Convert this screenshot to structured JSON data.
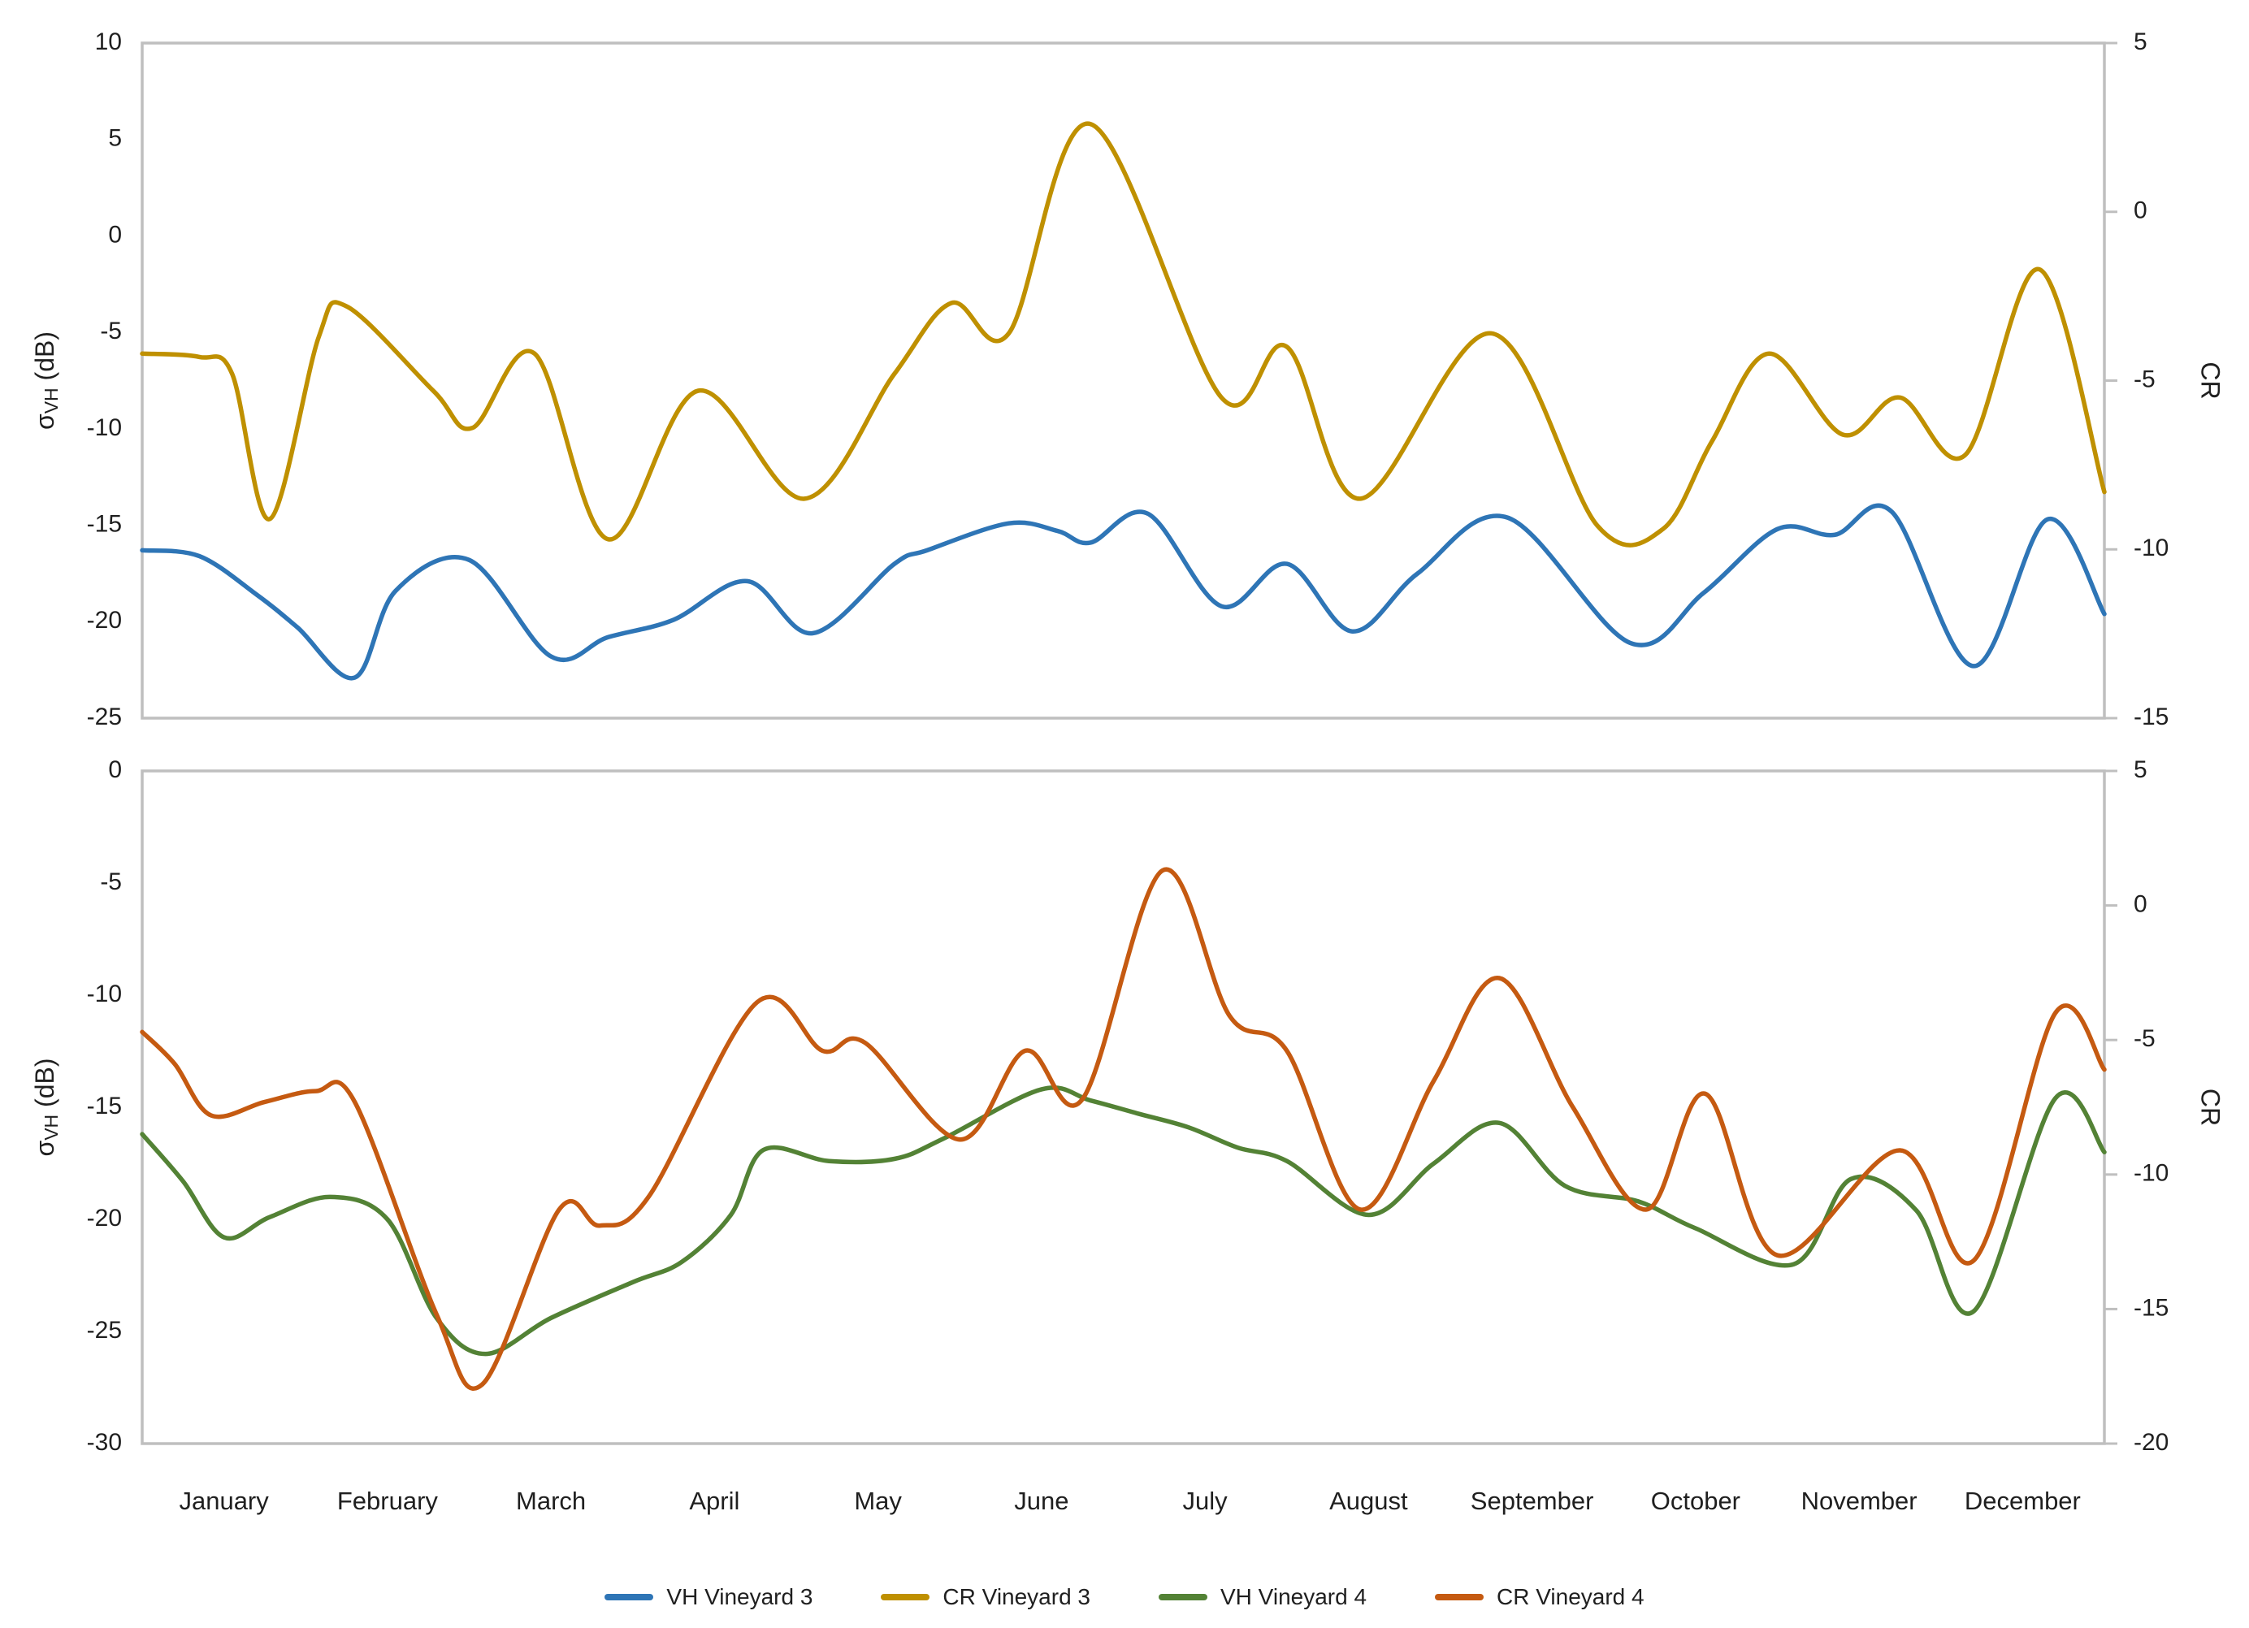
{
  "figure": {
    "kind": "dual stacked line charts, radar backscatter time series",
    "background": "#ffffff",
    "axis_border_color": "#BFBFBF",
    "text_color": "#1f1f1f"
  },
  "chart_data": [
    {
      "id": "vineyard3-top-chart",
      "type": "line",
      "x_axis": {
        "categories": [
          "January",
          "February",
          "March",
          "April",
          "May",
          "June",
          "July",
          "August",
          "September",
          "October",
          "November",
          "December"
        ],
        "range": [
          0,
          12
        ],
        "labels_shown": false
      },
      "left_axis": {
        "title_sigma": "σ",
        "title_sub": "VH",
        "title_unit": " (dB)",
        "ticks": [
          10,
          5,
          0,
          -5,
          -10,
          -15,
          -20,
          -25
        ],
        "range": [
          10,
          -25
        ]
      },
      "right_axis": {
        "title": "CR",
        "ticks": [
          5,
          0,
          -5,
          -10,
          -15
        ],
        "range": [
          5,
          -15
        ]
      },
      "grid": false,
      "legend_position": "bottom",
      "series": [
        {
          "name": "VH Vineyard 3",
          "color": "#2E75B6",
          "axis": "left",
          "points": [
            [
              0,
              -16.3
            ],
            [
              0.35,
              -16.6
            ],
            [
              0.7,
              -18.6
            ],
            [
              0.95,
              -20.3
            ],
            [
              1.3,
              -22.9
            ],
            [
              1.55,
              -18.4
            ],
            [
              2.0,
              -16.8
            ],
            [
              2.5,
              -21.8
            ],
            [
              2.85,
              -20.8
            ],
            [
              3.25,
              -19.9
            ],
            [
              3.7,
              -17.9
            ],
            [
              4.1,
              -20.6
            ],
            [
              4.6,
              -17.0
            ],
            [
              4.8,
              -16.3
            ],
            [
              5.3,
              -14.9
            ],
            [
              5.6,
              -15.3
            ],
            [
              5.8,
              -15.9
            ],
            [
              6.15,
              -14.4
            ],
            [
              6.6,
              -19.2
            ],
            [
              7.0,
              -17.0
            ],
            [
              7.4,
              -20.5
            ],
            [
              7.8,
              -17.5
            ],
            [
              8.35,
              -14.6
            ],
            [
              9.1,
              -21.1
            ],
            [
              9.55,
              -18.5
            ],
            [
              10.0,
              -15.2
            ],
            [
              10.35,
              -15.5
            ],
            [
              10.7,
              -14.3
            ],
            [
              11.2,
              -22.3
            ],
            [
              11.65,
              -14.7
            ],
            [
              12,
              -19.6
            ]
          ]
        },
        {
          "name": "CR Vineyard 3",
          "color": "#BF9000",
          "axis": "right",
          "points": [
            [
              0,
              -4.2
            ],
            [
              0.35,
              -4.3
            ],
            [
              0.55,
              -4.8
            ],
            [
              0.78,
              -9.1
            ],
            [
              1.08,
              -3.7
            ],
            [
              1.25,
              -2.8
            ],
            [
              1.78,
              -5.3
            ],
            [
              2.02,
              -6.4
            ],
            [
              2.4,
              -4.2
            ],
            [
              2.85,
              -9.7
            ],
            [
              3.4,
              -5.3
            ],
            [
              4.05,
              -8.5
            ],
            [
              4.6,
              -4.8
            ],
            [
              4.95,
              -2.7
            ],
            [
              5.3,
              -3.6
            ],
            [
              5.8,
              2.6
            ],
            [
              6.6,
              -5.5
            ],
            [
              7.0,
              -4.0
            ],
            [
              7.45,
              -8.5
            ],
            [
              8.25,
              -3.6
            ],
            [
              8.9,
              -9.3
            ],
            [
              9.3,
              -9.4
            ],
            [
              9.6,
              -6.8
            ],
            [
              9.95,
              -4.2
            ],
            [
              10.4,
              -6.6
            ],
            [
              10.75,
              -5.5
            ],
            [
              11.15,
              -7.2
            ],
            [
              11.6,
              -1.7
            ],
            [
              12,
              -8.3
            ]
          ]
        }
      ]
    },
    {
      "id": "vineyard4-bottom-chart",
      "type": "line",
      "x_axis": {
        "categories": [
          "January",
          "February",
          "March",
          "April",
          "May",
          "June",
          "July",
          "August",
          "September",
          "October",
          "November",
          "December"
        ],
        "range": [
          0,
          12
        ],
        "labels_shown": true
      },
      "left_axis": {
        "title_sigma": "σ",
        "title_sub": "VH",
        "title_unit": " (dB)",
        "ticks": [
          0,
          -5,
          -10,
          -15,
          -20,
          -25,
          -30
        ],
        "range": [
          0,
          -30
        ]
      },
      "right_axis": {
        "title": "CR",
        "ticks": [
          5,
          0,
          -5,
          -10,
          -15,
          -20
        ],
        "range": [
          5,
          -20
        ]
      },
      "grid": false,
      "legend_position": "bottom",
      "series": [
        {
          "name": "VH Vineyard 4",
          "color": "#538235",
          "axis": "left",
          "points": [
            [
              0,
              -16.2
            ],
            [
              0.25,
              -18.3
            ],
            [
              0.5,
              -20.8
            ],
            [
              0.78,
              -19.9
            ],
            [
              1.15,
              -19.0
            ],
            [
              1.5,
              -20.0
            ],
            [
              1.8,
              -24.4
            ],
            [
              2.1,
              -26.0
            ],
            [
              2.5,
              -24.4
            ],
            [
              3.0,
              -22.8
            ],
            [
              3.3,
              -21.9
            ],
            [
              3.6,
              -19.8
            ],
            [
              3.8,
              -16.9
            ],
            [
              4.2,
              -17.4
            ],
            [
              4.6,
              -17.3
            ],
            [
              4.9,
              -16.4
            ],
            [
              5.5,
              -14.2
            ],
            [
              5.8,
              -14.7
            ],
            [
              6.1,
              -15.3
            ],
            [
              6.4,
              -15.9
            ],
            [
              6.7,
              -16.8
            ],
            [
              7.0,
              -17.4
            ],
            [
              7.5,
              -19.8
            ],
            [
              7.9,
              -17.5
            ],
            [
              8.3,
              -15.7
            ],
            [
              8.7,
              -18.5
            ],
            [
              9.15,
              -19.2
            ],
            [
              9.5,
              -20.4
            ],
            [
              10.1,
              -22.0
            ],
            [
              10.45,
              -18.2
            ],
            [
              10.85,
              -19.6
            ],
            [
              11.2,
              -24.1
            ],
            [
              11.7,
              -14.6
            ],
            [
              12,
              -17.0
            ]
          ]
        },
        {
          "name": "CR Vineyard 4",
          "color": "#C55A11",
          "axis": "right",
          "points": [
            [
              0,
              -4.7
            ],
            [
              0.2,
              -5.9
            ],
            [
              0.42,
              -7.8
            ],
            [
              0.75,
              -7.3
            ],
            [
              1.06,
              -6.9
            ],
            [
              1.3,
              -7.3
            ],
            [
              1.8,
              -15.2
            ],
            [
              2.08,
              -17.8
            ],
            [
              2.55,
              -11.3
            ],
            [
              2.8,
              -11.9
            ],
            [
              3.1,
              -10.8
            ],
            [
              3.76,
              -3.6
            ],
            [
              4.16,
              -5.4
            ],
            [
              4.42,
              -5.1
            ],
            [
              5.0,
              -8.7
            ],
            [
              5.4,
              -5.4
            ],
            [
              5.75,
              -7.2
            ],
            [
              6.24,
              1.3
            ],
            [
              6.65,
              -4.1
            ],
            [
              7.0,
              -5.4
            ],
            [
              7.45,
              -11.3
            ],
            [
              7.9,
              -6.5
            ],
            [
              8.3,
              -2.7
            ],
            [
              8.75,
              -7.5
            ],
            [
              9.2,
              -11.3
            ],
            [
              9.56,
              -7.0
            ],
            [
              10.0,
              -13.0
            ],
            [
              10.75,
              -9.1
            ],
            [
              11.2,
              -13.2
            ],
            [
              11.7,
              -4.0
            ],
            [
              12,
              -6.1
            ]
          ]
        }
      ]
    }
  ],
  "legend": {
    "items": [
      {
        "label": "VH Vineyard 3",
        "color": "#2E75B6"
      },
      {
        "label": "CR Vineyard 3",
        "color": "#BF9000"
      },
      {
        "label": "VH Vineyard 4",
        "color": "#538235"
      },
      {
        "label": "CR Vineyard 4",
        "color": "#C55A11"
      }
    ]
  }
}
